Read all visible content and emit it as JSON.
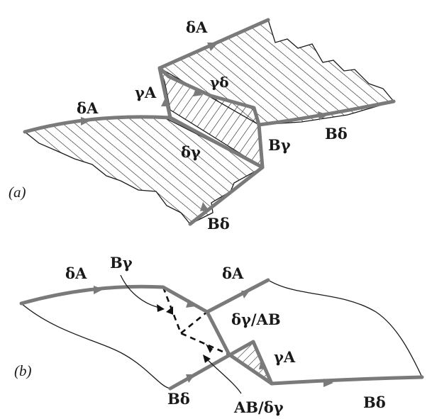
{
  "panel_a": {
    "panel_label": "(a)",
    "labels": {
      "top_dA": "δA",
      "left_dA": "δA",
      "gA": "γA",
      "gd": "γδ",
      "dg": "δγ",
      "Bg": "Bγ",
      "right_Bd": "Bδ",
      "bottom_Bd": "Bδ"
    }
  },
  "panel_b": {
    "panel_label": "(b)",
    "labels": {
      "left_dA": "δA",
      "Bg": "Bγ",
      "right_dA": "δA",
      "dg_AB": "δγ/AB",
      "gA": "γA",
      "left_Bd": "Bδ",
      "AB_dg": "AB/δγ",
      "right_Bd": "Bδ"
    }
  },
  "colors": {
    "thick_line": "#7a7a7a",
    "thin_line": "#1a1a1a",
    "hatch": "#1a1a1a"
  }
}
